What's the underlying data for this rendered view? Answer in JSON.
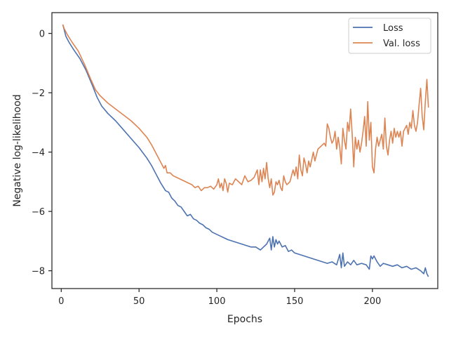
{
  "chart_data": {
    "type": "line",
    "xlabel": "Epochs",
    "ylabel": "Negative log-likelihood",
    "xlim": [
      -6,
      242
    ],
    "ylim": [
      -8.6,
      0.7
    ],
    "xticks": [
      0,
      50,
      100,
      150,
      200
    ],
    "yticks": [
      0,
      -2,
      -4,
      -6,
      -8
    ],
    "grid": false,
    "legend": "top-right",
    "series": [
      {
        "name": "Loss",
        "color": "#4c72b0",
        "points": [
          [
            1,
            0.3
          ],
          [
            2,
            0.1
          ],
          [
            3,
            -0.1
          ],
          [
            5,
            -0.3
          ],
          [
            8,
            -0.55
          ],
          [
            12,
            -0.85
          ],
          [
            16,
            -1.25
          ],
          [
            20,
            -1.75
          ],
          [
            23,
            -2.15
          ],
          [
            26,
            -2.45
          ],
          [
            30,
            -2.7
          ],
          [
            35,
            -2.95
          ],
          [
            40,
            -3.25
          ],
          [
            45,
            -3.55
          ],
          [
            50,
            -3.85
          ],
          [
            55,
            -4.2
          ],
          [
            58,
            -4.45
          ],
          [
            61,
            -4.75
          ],
          [
            64,
            -5.05
          ],
          [
            67,
            -5.3
          ],
          [
            69,
            -5.35
          ],
          [
            71,
            -5.55
          ],
          [
            73,
            -5.65
          ],
          [
            75,
            -5.8
          ],
          [
            77,
            -5.85
          ],
          [
            79,
            -6.0
          ],
          [
            81,
            -6.15
          ],
          [
            83,
            -6.1
          ],
          [
            85,
            -6.25
          ],
          [
            87,
            -6.3
          ],
          [
            89,
            -6.4
          ],
          [
            91,
            -6.45
          ],
          [
            93,
            -6.55
          ],
          [
            95,
            -6.6
          ],
          [
            97,
            -6.7
          ],
          [
            99,
            -6.75
          ],
          [
            101,
            -6.8
          ],
          [
            103,
            -6.85
          ],
          [
            105,
            -6.9
          ],
          [
            107,
            -6.95
          ],
          [
            110,
            -7.0
          ],
          [
            113,
            -7.05
          ],
          [
            116,
            -7.1
          ],
          [
            119,
            -7.15
          ],
          [
            122,
            -7.2
          ],
          [
            125,
            -7.2
          ],
          [
            128,
            -7.3
          ],
          [
            130,
            -7.2
          ],
          [
            132,
            -7.1
          ],
          [
            134,
            -6.9
          ],
          [
            135,
            -7.3
          ],
          [
            136,
            -6.85
          ],
          [
            137,
            -7.2
          ],
          [
            138,
            -6.95
          ],
          [
            139,
            -7.1
          ],
          [
            140,
            -7.0
          ],
          [
            142,
            -7.2
          ],
          [
            144,
            -7.15
          ],
          [
            146,
            -7.35
          ],
          [
            148,
            -7.3
          ],
          [
            150,
            -7.4
          ],
          [
            153,
            -7.45
          ],
          [
            156,
            -7.5
          ],
          [
            159,
            -7.55
          ],
          [
            162,
            -7.6
          ],
          [
            165,
            -7.65
          ],
          [
            168,
            -7.7
          ],
          [
            171,
            -7.75
          ],
          [
            174,
            -7.7
          ],
          [
            177,
            -7.8
          ],
          [
            179,
            -7.45
          ],
          [
            180,
            -7.9
          ],
          [
            181,
            -7.4
          ],
          [
            182,
            -7.85
          ],
          [
            184,
            -7.7
          ],
          [
            186,
            -7.8
          ],
          [
            188,
            -7.65
          ],
          [
            190,
            -7.8
          ],
          [
            193,
            -7.75
          ],
          [
            196,
            -7.8
          ],
          [
            198,
            -7.95
          ],
          [
            199,
            -7.5
          ],
          [
            200,
            -7.6
          ],
          [
            201,
            -7.5
          ],
          [
            203,
            -7.7
          ],
          [
            205,
            -7.85
          ],
          [
            207,
            -7.75
          ],
          [
            210,
            -7.8
          ],
          [
            213,
            -7.85
          ],
          [
            216,
            -7.8
          ],
          [
            219,
            -7.9
          ],
          [
            222,
            -7.85
          ],
          [
            225,
            -7.95
          ],
          [
            228,
            -7.9
          ],
          [
            231,
            -8.0
          ],
          [
            233,
            -8.1
          ],
          [
            234,
            -7.9
          ],
          [
            235,
            -8.1
          ],
          [
            236,
            -8.2
          ]
        ]
      },
      {
        "name": "Val. loss",
        "color": "#dd8452",
        "points": [
          [
            1,
            0.3
          ],
          [
            2,
            0.15
          ],
          [
            4,
            -0.05
          ],
          [
            7,
            -0.3
          ],
          [
            11,
            -0.6
          ],
          [
            15,
            -1.05
          ],
          [
            19,
            -1.55
          ],
          [
            22,
            -1.9
          ],
          [
            25,
            -2.1
          ],
          [
            30,
            -2.35
          ],
          [
            35,
            -2.55
          ],
          [
            40,
            -2.75
          ],
          [
            45,
            -2.95
          ],
          [
            50,
            -3.2
          ],
          [
            55,
            -3.5
          ],
          [
            58,
            -3.75
          ],
          [
            61,
            -4.05
          ],
          [
            64,
            -4.35
          ],
          [
            66,
            -4.55
          ],
          [
            67,
            -4.45
          ],
          [
            68,
            -4.7
          ],
          [
            70,
            -4.7
          ],
          [
            72,
            -4.8
          ],
          [
            74,
            -4.85
          ],
          [
            76,
            -4.9
          ],
          [
            78,
            -4.95
          ],
          [
            80,
            -5.0
          ],
          [
            82,
            -5.05
          ],
          [
            84,
            -5.1
          ],
          [
            86,
            -5.2
          ],
          [
            88,
            -5.15
          ],
          [
            90,
            -5.3
          ],
          [
            92,
            -5.2
          ],
          [
            94,
            -5.2
          ],
          [
            96,
            -5.15
          ],
          [
            98,
            -5.25
          ],
          [
            100,
            -5.1
          ],
          [
            101,
            -4.9
          ],
          [
            102,
            -5.2
          ],
          [
            103,
            -5.05
          ],
          [
            104,
            -5.3
          ],
          [
            105,
            -4.9
          ],
          [
            106,
            -5.05
          ],
          [
            107,
            -5.35
          ],
          [
            108,
            -5.05
          ],
          [
            110,
            -5.1
          ],
          [
            112,
            -4.9
          ],
          [
            114,
            -5.0
          ],
          [
            116,
            -5.1
          ],
          [
            118,
            -4.8
          ],
          [
            120,
            -5.0
          ],
          [
            122,
            -4.95
          ],
          [
            124,
            -4.85
          ],
          [
            126,
            -4.6
          ],
          [
            127,
            -5.1
          ],
          [
            128,
            -4.6
          ],
          [
            129,
            -5.0
          ],
          [
            130,
            -4.55
          ],
          [
            131,
            -4.9
          ],
          [
            132,
            -4.35
          ],
          [
            133,
            -4.9
          ],
          [
            134,
            -5.2
          ],
          [
            135,
            -4.9
          ],
          [
            136,
            -5.45
          ],
          [
            137,
            -5.35
          ],
          [
            138,
            -5.0
          ],
          [
            139,
            -5.1
          ],
          [
            140,
            -4.95
          ],
          [
            141,
            -5.2
          ],
          [
            142,
            -5.3
          ],
          [
            143,
            -4.8
          ],
          [
            144,
            -5.0
          ],
          [
            145,
            -5.1
          ],
          [
            147,
            -5.0
          ],
          [
            149,
            -4.6
          ],
          [
            150,
            -4.8
          ],
          [
            151,
            -4.5
          ],
          [
            152,
            -4.9
          ],
          [
            153,
            -4.1
          ],
          [
            154,
            -4.6
          ],
          [
            155,
            -4.8
          ],
          [
            156,
            -4.2
          ],
          [
            157,
            -4.4
          ],
          [
            158,
            -4.7
          ],
          [
            159,
            -4.3
          ],
          [
            160,
            -4.5
          ],
          [
            162,
            -4.0
          ],
          [
            163,
            -4.3
          ],
          [
            165,
            -3.9
          ],
          [
            167,
            -3.8
          ],
          [
            169,
            -3.7
          ],
          [
            170,
            -3.8
          ],
          [
            171,
            -3.05
          ],
          [
            172,
            -3.2
          ],
          [
            173,
            -3.5
          ],
          [
            174,
            -3.7
          ],
          [
            175,
            -3.6
          ],
          [
            176,
            -3.3
          ],
          [
            177,
            -3.9
          ],
          [
            178,
            -3.5
          ],
          [
            179,
            -3.85
          ],
          [
            180,
            -4.4
          ],
          [
            181,
            -3.2
          ],
          [
            182,
            -3.6
          ],
          [
            183,
            -3.9
          ],
          [
            184,
            -3.0
          ],
          [
            185,
            -3.3
          ],
          [
            186,
            -2.55
          ],
          [
            187,
            -3.4
          ],
          [
            188,
            -4.5
          ],
          [
            189,
            -3.5
          ],
          [
            190,
            -3.9
          ],
          [
            191,
            -3.6
          ],
          [
            192,
            -4.0
          ],
          [
            193,
            -3.7
          ],
          [
            194,
            -3.3
          ],
          [
            195,
            -2.8
          ],
          [
            196,
            -3.8
          ],
          [
            197,
            -2.3
          ],
          [
            198,
            -3.6
          ],
          [
            199,
            -3.0
          ],
          [
            200,
            -4.5
          ],
          [
            201,
            -4.7
          ],
          [
            202,
            -3.9
          ],
          [
            203,
            -3.5
          ],
          [
            204,
            -3.8
          ],
          [
            205,
            -3.6
          ],
          [
            206,
            -3.4
          ],
          [
            207,
            -3.9
          ],
          [
            208,
            -2.85
          ],
          [
            209,
            -3.8
          ],
          [
            210,
            -4.1
          ],
          [
            211,
            -3.6
          ],
          [
            212,
            -3.3
          ],
          [
            213,
            -3.7
          ],
          [
            214,
            -3.2
          ],
          [
            215,
            -3.5
          ],
          [
            216,
            -3.3
          ],
          [
            217,
            -3.5
          ],
          [
            218,
            -3.3
          ],
          [
            219,
            -3.8
          ],
          [
            220,
            -3.3
          ],
          [
            221,
            -3.2
          ],
          [
            222,
            -3.1
          ],
          [
            223,
            -3.4
          ],
          [
            224,
            -3.0
          ],
          [
            225,
            -3.2
          ],
          [
            226,
            -2.6
          ],
          [
            227,
            -3.1
          ],
          [
            228,
            -3.3
          ],
          [
            229,
            -3.0
          ],
          [
            230,
            -2.4
          ],
          [
            231,
            -1.85
          ],
          [
            232,
            -2.8
          ],
          [
            233,
            -3.25
          ],
          [
            234,
            -2.3
          ],
          [
            235,
            -1.55
          ],
          [
            236,
            -2.5
          ]
        ]
      }
    ]
  }
}
